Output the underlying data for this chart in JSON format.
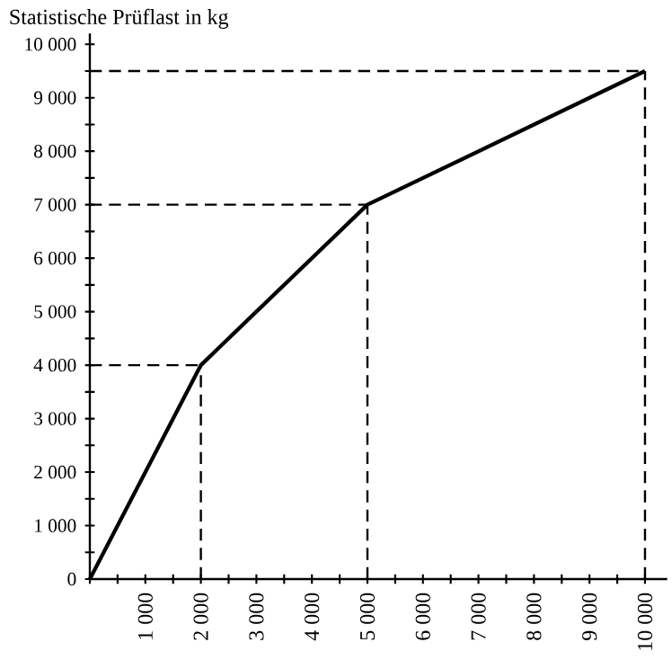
{
  "chart_data": {
    "type": "line",
    "ylabel": "Statistische Prüflast in kg",
    "x": [
      0,
      2000,
      5000,
      10000
    ],
    "series": [
      {
        "color": "#000000",
        "values": [
          0,
          4000,
          7000,
          9500
        ]
      }
    ],
    "xlim": [
      0,
      10400
    ],
    "ylim": [
      0,
      10200
    ],
    "xticks": [
      {
        "value": 0,
        "label": null
      },
      {
        "value": 500,
        "label": null
      },
      {
        "value": 1000,
        "label": "1 000"
      },
      {
        "value": 1500,
        "label": null
      },
      {
        "value": 2000,
        "label": "2 000"
      },
      {
        "value": 2500,
        "label": null
      },
      {
        "value": 3000,
        "label": "3 000"
      },
      {
        "value": 3500,
        "label": null
      },
      {
        "value": 4000,
        "label": "4 000"
      },
      {
        "value": 4500,
        "label": null
      },
      {
        "value": 5000,
        "label": "5 000"
      },
      {
        "value": 5500,
        "label": null
      },
      {
        "value": 6000,
        "label": "6 000"
      },
      {
        "value": 6500,
        "label": null
      },
      {
        "value": 7000,
        "label": "7 000"
      },
      {
        "value": 7500,
        "label": null
      },
      {
        "value": 8000,
        "label": "8 000"
      },
      {
        "value": 8500,
        "label": null
      },
      {
        "value": 9000,
        "label": "9 000"
      },
      {
        "value": 9500,
        "label": null
      },
      {
        "value": 10000,
        "label": "10 000"
      }
    ],
    "yticks": [
      0,
      {
        "value": 500,
        "label": null
      },
      {
        "value": 1000,
        "label": "1 000"
      },
      {
        "value": 1500,
        "label": null
      },
      {
        "value": 2000,
        "label": "2 000"
      },
      {
        "value": 2500,
        "label": null
      },
      {
        "value": 3000,
        "label": "3 000"
      },
      {
        "value": 3500,
        "label": null
      },
      {
        "value": 4000,
        "label": "4 000"
      },
      {
        "value": 4500,
        "label": null
      },
      {
        "value": 5000,
        "label": "5 000"
      },
      {
        "value": 5500,
        "label": null
      },
      {
        "value": 6000,
        "label": "6 000"
      },
      {
        "value": 6500,
        "label": null
      },
      {
        "value": 7000,
        "label": "7 000"
      },
      {
        "value": 7500,
        "label": null
      },
      {
        "value": 8000,
        "label": "8 000"
      },
      {
        "value": 8500,
        "label": null
      },
      {
        "value": 9000,
        "label": "9 000"
      },
      {
        "value": 9500,
        "label": null
      },
      {
        "value": 10000,
        "label": "10 000"
      }
    ],
    "ref_lines": [
      {
        "axis": "y",
        "value": 4000,
        "line_style": "dashed"
      },
      {
        "axis": "y",
        "value": 7000,
        "line_style": "dashed"
      },
      {
        "axis": "y",
        "value": 9500,
        "line_style": "dashed"
      },
      {
        "axis": "x",
        "value": 2000,
        "line_style": "dashed"
      },
      {
        "axis": "x",
        "value": 5000,
        "line_style": "dashed"
      },
      {
        "axis": "x",
        "value": 10000,
        "line_style": "dashed"
      }
    ],
    "grid": false,
    "marker": "none",
    "line_style": "solid"
  }
}
